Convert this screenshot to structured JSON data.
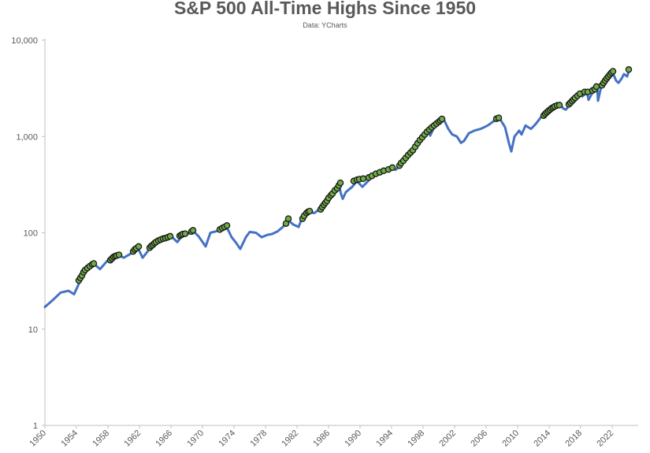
{
  "chart_data": {
    "type": "line",
    "title": "S&P 500 All-Time Highs Since 1950",
    "subtitle": "Data: YCharts",
    "xlabel": "",
    "ylabel": "",
    "y_scale": "log",
    "ylim": [
      1,
      10000
    ],
    "xlim": [
      1950,
      2024.3
    ],
    "y_ticks": [
      1,
      10,
      100,
      1000,
      10000
    ],
    "y_tick_labels": [
      "1",
      "10",
      "100",
      "1,000",
      "10,000"
    ],
    "x_ticks": [
      1950,
      1954,
      1958,
      1962,
      1966,
      1970,
      1974,
      1978,
      1982,
      1986,
      1990,
      1994,
      1998,
      2002,
      2006,
      2010,
      2014,
      2018,
      2022
    ],
    "x_tick_labels": [
      "1950",
      "1954",
      "1958",
      "1962",
      "1966",
      "1970",
      "1974",
      "1978",
      "1982",
      "1986",
      "1990",
      "1994",
      "1998",
      "2002",
      "2006",
      "2010",
      "2014",
      "2018",
      "2022"
    ],
    "grid": false,
    "colors": {
      "line": "#4472c4",
      "marker_fill": "#70ad47",
      "marker_edge": "#1a1a1a",
      "axis": "#bfbfbf",
      "text": "#595959"
    },
    "series": [
      {
        "marker": "none",
        "x": [
          1950.0,
          1951.0,
          1952.0,
          1953.0,
          1953.7,
          1954.5,
          1955.3,
          1956.3,
          1957.0,
          1957.8,
          1958.5,
          1959.4,
          1960.0,
          1960.8,
          1961.8,
          1962.4,
          1962.9,
          1963.5,
          1964.5,
          1965.5,
          1966.0,
          1966.8,
          1967.5,
          1968.2,
          1968.9,
          1969.5,
          1970.4,
          1971.0,
          1971.8,
          1972.5,
          1973.0,
          1973.7,
          1974.3,
          1974.8,
          1975.5,
          1976.0,
          1976.8,
          1977.5,
          1978.2,
          1978.8,
          1979.5,
          1980.2,
          1980.9,
          1981.5,
          1982.2,
          1982.6,
          1983.0,
          1983.5,
          1984.2,
          1984.8,
          1985.5,
          1986.2,
          1986.8,
          1987.3,
          1987.6,
          1987.8,
          1988.2,
          1989.0,
          1989.6,
          1990.3,
          1990.8,
          1991.5,
          1992.3,
          1993.0,
          1993.8,
          1994.5,
          1995.0,
          1995.5,
          1996.0,
          1996.8,
          1997.5,
          1998.0,
          1998.6,
          1998.9,
          1999.5,
          2000.2,
          2000.6,
          2001.2,
          2001.7,
          2002.3,
          2002.8,
          2003.2,
          2003.8,
          2004.5,
          2005.3,
          2006.2,
          2007.0,
          2007.8,
          2008.4,
          2008.9,
          2009.2,
          2009.6,
          2010.2,
          2010.5,
          2011.0,
          2011.7,
          2012.3,
          2013.0,
          2013.6,
          2014.3,
          2014.9,
          2015.5,
          2015.8,
          2016.1,
          2016.7,
          2017.3,
          2018.0,
          2018.2,
          2018.8,
          2019.0,
          2019.6,
          2020.1,
          2020.2,
          2020.6,
          2021.0,
          2021.5,
          2022.0,
          2022.5,
          2022.8,
          2023.2,
          2023.5,
          2023.9,
          2024.2
        ],
        "y": [
          17,
          20,
          24,
          25,
          23,
          32,
          42,
          47,
          42,
          50,
          58,
          59,
          55,
          60,
          70,
          55,
          62,
          72,
          85,
          90,
          93,
          80,
          95,
          98,
          103,
          92,
          72,
          100,
          104,
          110,
          118,
          90,
          78,
          68,
          90,
          102,
          100,
          90,
          95,
          97,
          103,
          115,
          135,
          122,
          115,
          140,
          145,
          165,
          160,
          175,
          200,
          240,
          270,
          320,
          250,
          225,
          265,
          300,
          345,
          300,
          330,
          380,
          410,
          440,
          470,
          450,
          490,
          560,
          650,
          750,
          930,
          1050,
          1150,
          1020,
          1300,
          1450,
          1520,
          1200,
          1050,
          1000,
          860,
          900,
          1080,
          1150,
          1200,
          1300,
          1450,
          1500,
          1250,
          850,
          700,
          1000,
          1150,
          1050,
          1300,
          1200,
          1350,
          1600,
          1700,
          1950,
          2050,
          2100,
          1950,
          1900,
          2150,
          2400,
          2800,
          2600,
          2900,
          2400,
          2950,
          3300,
          2350,
          3300,
          3800,
          4400,
          4750,
          3800,
          3600,
          4000,
          4450,
          4200,
          5100
        ]
      },
      {
        "marker": "circle",
        "x": [
          1954.3,
          1954.5,
          1954.7,
          1954.9,
          1955.1,
          1955.4,
          1955.7,
          1956.0,
          1956.2,
          1958.3,
          1958.5,
          1958.7,
          1958.9,
          1959.1,
          1959.4,
          1961.2,
          1961.4,
          1961.6,
          1961.9,
          1963.3,
          1963.5,
          1963.7,
          1963.9,
          1964.1,
          1964.4,
          1964.7,
          1965.0,
          1965.3,
          1965.6,
          1965.9,
          1967.1,
          1967.3,
          1967.5,
          1967.8,
          1968.6,
          1968.8,
          1972.2,
          1972.5,
          1972.8,
          1973.1,
          1980.6,
          1980.9,
          1982.7,
          1982.9,
          1983.2,
          1983.4,
          1983.6,
          1985.0,
          1985.2,
          1985.4,
          1985.6,
          1985.8,
          1986.0,
          1986.3,
          1986.5,
          1986.8,
          1987.1,
          1987.3,
          1987.5,
          1989.2,
          1989.6,
          1989.9,
          1990.4,
          1991.1,
          1991.5,
          1992.0,
          1992.5,
          1993.0,
          1993.6,
          1994.1,
          1995.0,
          1995.2,
          1995.5,
          1995.8,
          1996.1,
          1996.4,
          1996.7,
          1997.0,
          1997.3,
          1997.6,
          1997.9,
          1998.2,
          1998.5,
          1998.8,
          1999.1,
          1999.4,
          1999.7,
          2000.0,
          2000.2,
          2000.4,
          2007.3,
          2007.6,
          2013.3,
          2013.5,
          2013.7,
          2013.9,
          2014.1,
          2014.3,
          2014.5,
          2014.7,
          2015.0,
          2015.3,
          2016.5,
          2016.7,
          2016.9,
          2017.1,
          2017.3,
          2017.6,
          2017.9,
          2018.5,
          2018.9,
          2019.5,
          2019.8,
          2020.0,
          2020.7,
          2020.9,
          2021.1,
          2021.3,
          2021.5,
          2021.7,
          2021.9,
          2022.1,
          2024.1
        ],
        "y": [
          32,
          34,
          36,
          39,
          41,
          43,
          45,
          47,
          48,
          52,
          54,
          56,
          57,
          58,
          59,
          64,
          67,
          69,
          72,
          70,
          73,
          75,
          78,
          80,
          83,
          85,
          87,
          88,
          90,
          92,
          93,
          95,
          97,
          98,
          103,
          106,
          108,
          112,
          115,
          119,
          125,
          140,
          140,
          150,
          160,
          165,
          168,
          175,
          185,
          195,
          205,
          215,
          230,
          245,
          255,
          275,
          290,
          310,
          330,
          345,
          355,
          360,
          365,
          375,
          390,
          410,
          425,
          440,
          455,
          475,
          500,
          530,
          560,
          600,
          640,
          680,
          720,
          780,
          850,
          920,
          980,
          1050,
          1120,
          1180,
          1240,
          1300,
          1360,
          1420,
          1470,
          1520,
          1530,
          1560,
          1650,
          1720,
          1780,
          1840,
          1900,
          1960,
          2000,
          2050,
          2100,
          2120,
          2160,
          2240,
          2330,
          2420,
          2520,
          2650,
          2780,
          2900,
          2900,
          3000,
          3100,
          3300,
          3400,
          3600,
          3800,
          4000,
          4200,
          4400,
          4600,
          4750,
          4950
        ]
      }
    ]
  }
}
